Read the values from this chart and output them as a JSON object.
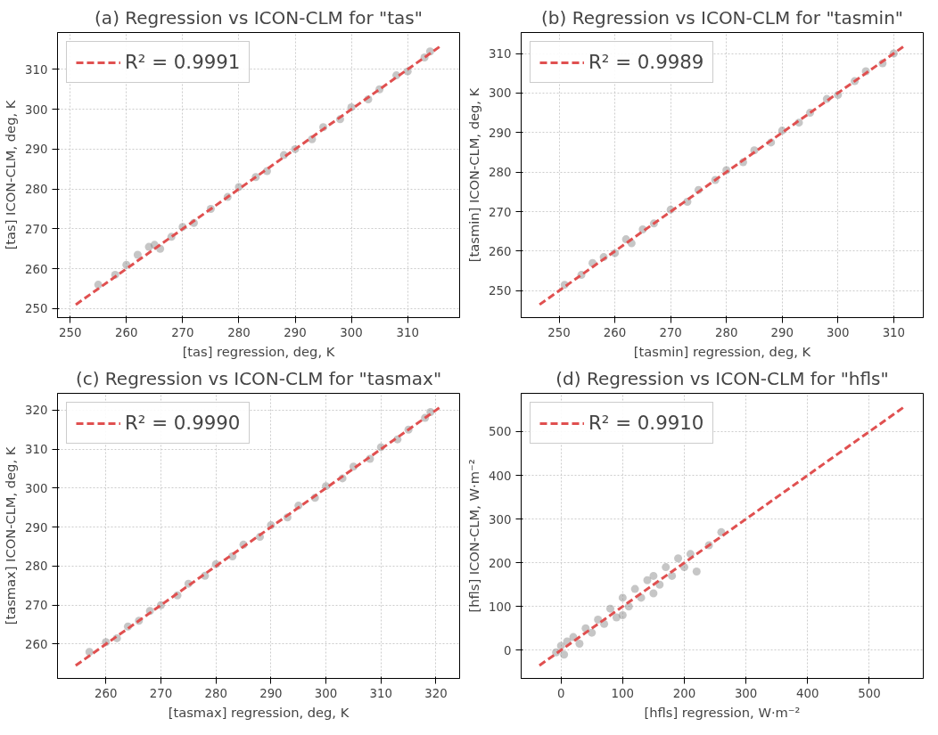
{
  "chart_data": [
    {
      "type": "scatter",
      "title": "(a) Regression vs ICON-CLM for \"tas\"",
      "xlabel": "[tas] regression, deg, K",
      "ylabel": "[tas] ICON-CLM, deg, K",
      "xlim": [
        247.75,
        319.25
      ],
      "ylim": [
        247.75,
        319.25
      ],
      "xticks": [
        250,
        260,
        270,
        280,
        290,
        300,
        310
      ],
      "yticks": [
        250,
        260,
        270,
        280,
        290,
        300,
        310
      ],
      "grid": true,
      "legend": "top left",
      "series": [
        {
          "marker": "circle",
          "color": "#808080",
          "x": [
            255,
            258,
            260,
            262,
            264,
            265,
            266,
            268,
            270,
            272,
            275,
            278,
            280,
            283,
            285,
            288,
            290,
            293,
            295,
            298,
            300,
            303,
            305,
            308,
            310,
            313,
            314
          ],
          "values": [
            256,
            258.5,
            261,
            263.5,
            265.5,
            266,
            265,
            268,
            270.5,
            271.5,
            275,
            278,
            280.5,
            283,
            284.5,
            288.5,
            290,
            292.5,
            295.5,
            297.5,
            300.5,
            302.5,
            305,
            308.5,
            309.5,
            313,
            314.5
          ]
        },
        {
          "type": "line",
          "name": "R² = 0.9991",
          "color": "#e05050",
          "line_style": "dashed",
          "marker": "none",
          "x": [
            251,
            316
          ],
          "values": [
            251,
            316
          ]
        }
      ]
    },
    {
      "type": "scatter",
      "title": "(b) Regression vs ICON-CLM for \"tasmin\"",
      "xlabel": "[tasmin] regression, deg, K",
      "ylabel": "[tasmin] ICON-CLM, deg, K",
      "xlim": [
        243.2,
        315.3
      ],
      "ylim": [
        243.2,
        315.3
      ],
      "xticks": [
        250,
        260,
        270,
        280,
        290,
        300,
        310
      ],
      "yticks": [
        250,
        260,
        270,
        280,
        290,
        300,
        310
      ],
      "grid": true,
      "legend": "top left",
      "series": [
        {
          "marker": "circle",
          "color": "#808080",
          "x": [
            251,
            254,
            256,
            258,
            260,
            262,
            263,
            265,
            267,
            270,
            273,
            275,
            278,
            280,
            283,
            285,
            288,
            290,
            293,
            295,
            298,
            300,
            303,
            305,
            308,
            310
          ],
          "values": [
            251.5,
            254,
            257,
            258.5,
            259.5,
            263,
            262,
            265.5,
            267,
            270.5,
            272.5,
            275.5,
            278,
            280.5,
            282.5,
            285.5,
            287.5,
            290.5,
            292.5,
            295,
            298.5,
            299.5,
            303,
            305.5,
            307.5,
            310
          ]
        },
        {
          "type": "line",
          "name": "R² = 0.9989",
          "color": "#e05050",
          "line_style": "dashed",
          "marker": "none",
          "x": [
            246.5,
            312
          ],
          "values": [
            246.5,
            312
          ]
        }
      ]
    },
    {
      "type": "scatter",
      "title": "(c) Regression vs ICON-CLM for \"tasmax\"",
      "xlabel": "[tasmax] regression, deg, K",
      "ylabel": "[tasmax] ICON-CLM, deg, K",
      "xlim": [
        251.2,
        324.3
      ],
      "ylim": [
        251.2,
        324.3
      ],
      "xticks": [
        260,
        270,
        280,
        290,
        300,
        310,
        320
      ],
      "yticks": [
        260,
        270,
        280,
        290,
        300,
        310,
        320
      ],
      "grid": true,
      "legend": "top left",
      "series": [
        {
          "marker": "circle",
          "color": "#808080",
          "x": [
            257,
            260,
            262,
            264,
            266,
            268,
            270,
            273,
            275,
            278,
            280,
            283,
            285,
            288,
            290,
            293,
            295,
            298,
            300,
            303,
            305,
            308,
            310,
            313,
            315,
            318,
            319
          ],
          "values": [
            258,
            260.5,
            261.5,
            264.5,
            266,
            268.5,
            270,
            272.5,
            275.5,
            277.5,
            280.5,
            282.5,
            285.5,
            287.5,
            290.5,
            292.5,
            295.5,
            297.5,
            300.5,
            302.5,
            305.5,
            307.5,
            310.5,
            312.5,
            315,
            318,
            319.5
          ]
        },
        {
          "type": "line",
          "name": "R² = 0.9990",
          "color": "#e05050",
          "line_style": "dashed",
          "marker": "none",
          "x": [
            254.5,
            321
          ],
          "values": [
            254.5,
            321
          ]
        }
      ]
    },
    {
      "type": "scatter",
      "title": "(d) Regression vs ICON-CLM for \"hfls\"",
      "xlabel": "[hfls] regression, W·m⁻²",
      "ylabel": "[hfls] ICON-CLM, W·m⁻²",
      "xlim": [
        -64.6,
        587.6
      ],
      "ylim": [
        -64.6,
        587.6
      ],
      "xticks": [
        0,
        100,
        200,
        300,
        400,
        500
      ],
      "yticks": [
        0,
        100,
        200,
        300,
        400,
        500
      ],
      "grid": true,
      "legend": "top left",
      "series": [
        {
          "marker": "circle",
          "color": "#808080",
          "x": [
            -8,
            0,
            5,
            10,
            20,
            30,
            40,
            50,
            60,
            70,
            80,
            90,
            100,
            100,
            110,
            120,
            130,
            140,
            150,
            150,
            160,
            170,
            180,
            190,
            200,
            210,
            220,
            240,
            260
          ],
          "values": [
            -5,
            10,
            -10,
            20,
            30,
            15,
            50,
            40,
            70,
            60,
            95,
            75,
            120,
            80,
            100,
            140,
            120,
            160,
            170,
            130,
            150,
            190,
            170,
            210,
            190,
            220,
            180,
            240,
            270
          ]
        },
        {
          "type": "line",
          "name": "R² = 0.9910",
          "color": "#e05050",
          "line_style": "dashed",
          "marker": "none",
          "x": [
            -35,
            558
          ],
          "values": [
            -35,
            558
          ]
        }
      ]
    }
  ]
}
